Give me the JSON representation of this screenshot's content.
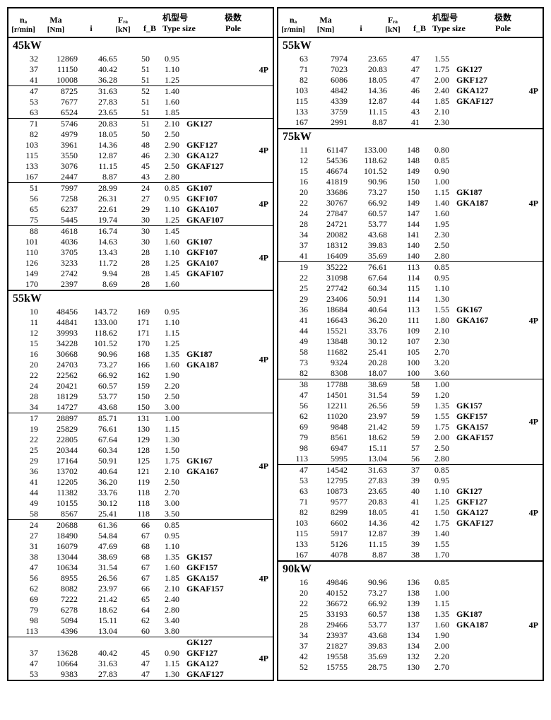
{
  "headers": {
    "na": "nₐ",
    "na_unit": "[r/min]",
    "ma": "Ma",
    "ma_unit": "[Nm]",
    "i": "i",
    "fra": "Fᵣₐ",
    "fra_unit": "[kN]",
    "fb": "f_B",
    "type_cn": "机型号",
    "type_en": "Type size",
    "pole_cn": "极数",
    "pole_en": "Pole"
  },
  "left": [
    {
      "title": "45kW",
      "groups": [
        {
          "pole": "4P",
          "types": [
            "GK127",
            "GKF127",
            "GKA127",
            "GKAF127"
          ],
          "rows": [
            [
              "32",
              "12869",
              "46.65",
              "50",
              "0.95"
            ],
            [
              "37",
              "11150",
              "40.42",
              "51",
              "1.10"
            ],
            [
              "41",
              "10008",
              "36.28",
              "51",
              "1.25"
            ]
          ]
        },
        {
          "sep": true,
          "rows": [
            [
              "47",
              "8725",
              "31.63",
              "52",
              "1.40"
            ],
            [
              "53",
              "7677",
              "27.83",
              "51",
              "1.60"
            ],
            [
              "63",
              "6524",
              "23.65",
              "51",
              "1.85"
            ]
          ]
        },
        {
          "sep": true,
          "pole": "4P",
          "types": [
            "GK127",
            "",
            "GKF127",
            "GKA127",
            "GKAF127"
          ],
          "rows": [
            [
              "71",
              "5746",
              "20.83",
              "51",
              "2.10"
            ],
            [
              "82",
              "4979",
              "18.05",
              "50",
              "2.50"
            ],
            [
              "103",
              "3961",
              "14.36",
              "48",
              "2.90"
            ],
            [
              "115",
              "3550",
              "12.87",
              "46",
              "2.30"
            ],
            [
              "133",
              "3076",
              "11.15",
              "45",
              "2.50"
            ],
            [
              "167",
              "2447",
              "8.87",
              "43",
              "2.80"
            ]
          ],
          "type_map": {
            "0": "GK127",
            "2": "GKF127",
            "3": "GKA127",
            "4": "GKAF127"
          }
        },
        {
          "sep": true,
          "pole": "4P",
          "type_map": {
            "0": "GK107",
            "1": "GKF107",
            "2": "GKA107",
            "3": "GKAF107"
          },
          "rows": [
            [
              "51",
              "7997",
              "28.99",
              "24",
              "0.85"
            ],
            [
              "56",
              "7258",
              "26.31",
              "27",
              "0.95"
            ],
            [
              "65",
              "6237",
              "22.61",
              "29",
              "1.10"
            ],
            [
              "75",
              "5445",
              "19.74",
              "30",
              "1.25"
            ]
          ]
        },
        {
          "sep": true,
          "pole": "4P",
          "type_map": {
            "1": "GK107",
            "2": "GKF107",
            "3": "GKA107",
            "4": "GKAF107"
          },
          "rows": [
            [
              "88",
              "4618",
              "16.74",
              "30",
              "1.45"
            ],
            [
              "101",
              "4036",
              "14.63",
              "30",
              "1.60"
            ],
            [
              "110",
              "3705",
              "13.43",
              "28",
              "1.10"
            ],
            [
              "126",
              "3233",
              "11.72",
              "28",
              "1.25"
            ],
            [
              "149",
              "2742",
              "9.94",
              "28",
              "1.45"
            ],
            [
              "170",
              "2397",
              "8.69",
              "28",
              "1.60"
            ]
          ]
        }
      ]
    },
    {
      "title": "55kW",
      "sep_thick": true,
      "groups": [
        {
          "pole": "4P",
          "type_map": {
            "4": "GK187",
            "5": "GKA187"
          },
          "rows": [
            [
              "10",
              "48456",
              "143.72",
              "169",
              "0.95"
            ],
            [
              "11",
              "44841",
              "133.00",
              "171",
              "1.10"
            ],
            [
              "12",
              "39993",
              "118.62",
              "171",
              "1.15"
            ],
            [
              "15",
              "34228",
              "101.52",
              "170",
              "1.25"
            ],
            [
              "16",
              "30668",
              "90.96",
              "168",
              "1.35"
            ],
            [
              "20",
              "24703",
              "73.27",
              "166",
              "1.60"
            ],
            [
              "22",
              "22562",
              "66.92",
              "162",
              "1.90"
            ],
            [
              "24",
              "20421",
              "60.57",
              "159",
              "2.20"
            ],
            [
              "28",
              "18129",
              "53.77",
              "150",
              "2.50"
            ],
            [
              "34",
              "14727",
              "43.68",
              "150",
              "3.00"
            ]
          ]
        },
        {
          "sep": true,
          "pole": "4P",
          "type_map": {
            "4": "GK167",
            "5": "GKA167"
          },
          "rows": [
            [
              "17",
              "28897",
              "85.71",
              "131",
              "1.00"
            ],
            [
              "19",
              "25829",
              "76.61",
              "130",
              "1.15"
            ],
            [
              "22",
              "22805",
              "67.64",
              "129",
              "1.30"
            ],
            [
              "25",
              "20344",
              "60.34",
              "128",
              "1.50"
            ],
            [
              "29",
              "17164",
              "50.91",
              "125",
              "1.75"
            ],
            [
              "36",
              "13702",
              "40.64",
              "121",
              "2.10"
            ],
            [
              "41",
              "12205",
              "36.20",
              "119",
              "2.50"
            ],
            [
              "44",
              "11382",
              "33.76",
              "118",
              "2.70"
            ],
            [
              "49",
              "10155",
              "30.12",
              "118",
              "3.00"
            ],
            [
              "58",
              "8567",
              "25.41",
              "118",
              "3.50"
            ]
          ]
        },
        {
          "sep": true,
          "pole": "4P",
          "type_map": {
            "3": "GK157",
            "4": "GKF157",
            "5": "GKA157",
            "6": "GKAF157"
          },
          "rows": [
            [
              "24",
              "20688",
              "61.36",
              "66",
              "0.85"
            ],
            [
              "27",
              "18490",
              "54.84",
              "67",
              "0.95"
            ],
            [
              "31",
              "16079",
              "47.69",
              "68",
              "1.10"
            ],
            [
              "38",
              "13044",
              "38.69",
              "68",
              "1.35"
            ],
            [
              "47",
              "10634",
              "31.54",
              "67",
              "1.60"
            ],
            [
              "56",
              "8955",
              "26.56",
              "67",
              "1.85"
            ],
            [
              "62",
              "8082",
              "23.97",
              "66",
              "2.10"
            ],
            [
              "69",
              "7222",
              "21.42",
              "65",
              "2.40"
            ],
            [
              "79",
              "6278",
              "18.62",
              "64",
              "2.80"
            ],
            [
              "98",
              "5094",
              "15.11",
              "62",
              "3.40"
            ],
            [
              "113",
              "4396",
              "13.04",
              "60",
              "3.80"
            ]
          ]
        },
        {
          "sep": true,
          "pole": "4P",
          "type_map": {
            "-1": "GK127",
            "0": "GKF127",
            "1": "GKA127",
            "2": "GKAF127"
          },
          "pre_types": [
            "GK127"
          ],
          "rows": [
            [
              "37",
              "13628",
              "40.42",
              "45",
              "0.90"
            ],
            [
              "47",
              "10664",
              "31.63",
              "47",
              "1.15"
            ],
            [
              "53",
              "9383",
              "27.83",
              "47",
              "1.30"
            ]
          ],
          "type_rows": {
            "0": "GKF127",
            "1": "GKA127",
            "2": "GKAF127"
          }
        }
      ]
    }
  ],
  "right": [
    {
      "title": "55kW",
      "groups": [
        {
          "pole": "4P",
          "type_map": {
            "1": "GK127",
            "2": "GKF127",
            "3": "GKA127",
            "4": "GKAF127"
          },
          "rows": [
            [
              "63",
              "7974",
              "23.65",
              "47",
              "1.55"
            ],
            [
              "71",
              "7023",
              "20.83",
              "47",
              "1.75"
            ],
            [
              "82",
              "6086",
              "18.05",
              "47",
              "2.00"
            ],
            [
              "103",
              "4842",
              "14.36",
              "46",
              "2.40"
            ],
            [
              "115",
              "4339",
              "12.87",
              "44",
              "1.85"
            ],
            [
              "133",
              "3759",
              "11.15",
              "43",
              "2.10"
            ],
            [
              "167",
              "2991",
              "8.87",
              "41",
              "2.30"
            ]
          ]
        }
      ]
    },
    {
      "title": "75kW",
      "sep_thick": true,
      "groups": [
        {
          "pole": "4P",
          "type_map": {
            "4": "GK187",
            "5": "GKA187"
          },
          "rows": [
            [
              "11",
              "61147",
              "133.00",
              "148",
              "0.80"
            ],
            [
              "12",
              "54536",
              "118.62",
              "148",
              "0.85"
            ],
            [
              "15",
              "46674",
              "101.52",
              "149",
              "0.90"
            ],
            [
              "16",
              "41819",
              "90.96",
              "150",
              "1.00"
            ],
            [
              "20",
              "33686",
              "73.27",
              "150",
              "1.15"
            ],
            [
              "22",
              "30767",
              "66.92",
              "149",
              "1.40"
            ],
            [
              "24",
              "27847",
              "60.57",
              "147",
              "1.60"
            ],
            [
              "28",
              "24721",
              "53.77",
              "144",
              "1.95"
            ],
            [
              "34",
              "20082",
              "43.68",
              "141",
              "2.30"
            ],
            [
              "37",
              "18312",
              "39.83",
              "140",
              "2.50"
            ],
            [
              "41",
              "16409",
              "35.69",
              "140",
              "2.80"
            ]
          ]
        },
        {
          "sep": true,
          "pole": "4P",
          "type_map": {
            "4": "GK167",
            "5": "GKA167"
          },
          "rows": [
            [
              "19",
              "35222",
              "76.61",
              "113",
              "0.85"
            ],
            [
              "22",
              "31098",
              "67.64",
              "114",
              "0.95"
            ],
            [
              "25",
              "27742",
              "60.34",
              "115",
              "1.10"
            ],
            [
              "29",
              "23406",
              "50.91",
              "114",
              "1.30"
            ],
            [
              "36",
              "18684",
              "40.64",
              "113",
              "1.55"
            ],
            [
              "41",
              "16643",
              "36.20",
              "111",
              "1.80"
            ],
            [
              "44",
              "15521",
              "33.76",
              "109",
              "2.10"
            ],
            [
              "49",
              "13848",
              "30.12",
              "107",
              "2.30"
            ],
            [
              "58",
              "11682",
              "25.41",
              "105",
              "2.70"
            ],
            [
              "73",
              "9324",
              "20.28",
              "100",
              "3.20"
            ],
            [
              "82",
              "8308",
              "18.07",
              "100",
              "3.60"
            ]
          ]
        },
        {
          "sep": true,
          "pole": "4P",
          "type_map": {
            "2": "GK157",
            "3": "GKF157",
            "4": "GKA157",
            "5": "GKAF157"
          },
          "rows": [
            [
              "38",
              "17788",
              "38.69",
              "58",
              "1.00"
            ],
            [
              "47",
              "14501",
              "31.54",
              "59",
              "1.20"
            ],
            [
              "56",
              "12211",
              "26.56",
              "59",
              "1.35"
            ],
            [
              "62",
              "11020",
              "23.97",
              "59",
              "1.55"
            ],
            [
              "69",
              "9848",
              "21.42",
              "59",
              "1.75"
            ],
            [
              "79",
              "8561",
              "18.62",
              "59",
              "2.00"
            ],
            [
              "98",
              "6947",
              "15.11",
              "57",
              "2.50"
            ],
            [
              "113",
              "5995",
              "13.04",
              "56",
              "2.80"
            ]
          ]
        },
        {
          "sep": true,
          "pole": "4P",
          "type_map": {
            "2": "GK127",
            "3": "GKF127",
            "4": "GKA127",
            "5": "GKAF127"
          },
          "rows": [
            [
              "47",
              "14542",
              "31.63",
              "37",
              "0.85"
            ],
            [
              "53",
              "12795",
              "27.83",
              "39",
              "0.95"
            ],
            [
              "63",
              "10873",
              "23.65",
              "40",
              "1.10"
            ],
            [
              "71",
              "9577",
              "20.83",
              "41",
              "1.25"
            ],
            [
              "82",
              "8299",
              "18.05",
              "41",
              "1.50"
            ],
            [
              "103",
              "6602",
              "14.36",
              "42",
              "1.75"
            ],
            [
              "115",
              "5917",
              "12.87",
              "39",
              "1.40"
            ],
            [
              "133",
              "5126",
              "11.15",
              "39",
              "1.55"
            ],
            [
              "167",
              "4078",
              "8.87",
              "38",
              "1.70"
            ]
          ]
        }
      ]
    },
    {
      "title": "90kW",
      "sep_thick": true,
      "groups": [
        {
          "pole": "4P",
          "type_map": {
            "3": "GK187",
            "4": "GKA187"
          },
          "rows": [
            [
              "16",
              "49846",
              "90.96",
              "136",
              "0.85"
            ],
            [
              "20",
              "40152",
              "73.27",
              "138",
              "1.00"
            ],
            [
              "22",
              "36672",
              "66.92",
              "139",
              "1.15"
            ],
            [
              "25",
              "33193",
              "60.57",
              "138",
              "1.35"
            ],
            [
              "28",
              "29466",
              "53.77",
              "137",
              "1.60"
            ],
            [
              "34",
              "23937",
              "43.68",
              "134",
              "1.90"
            ],
            [
              "37",
              "21827",
              "39.83",
              "134",
              "2.00"
            ],
            [
              "42",
              "19558",
              "35.69",
              "132",
              "2.20"
            ],
            [
              "52",
              "15755",
              "28.75",
              "130",
              "2.70"
            ]
          ]
        }
      ]
    }
  ]
}
